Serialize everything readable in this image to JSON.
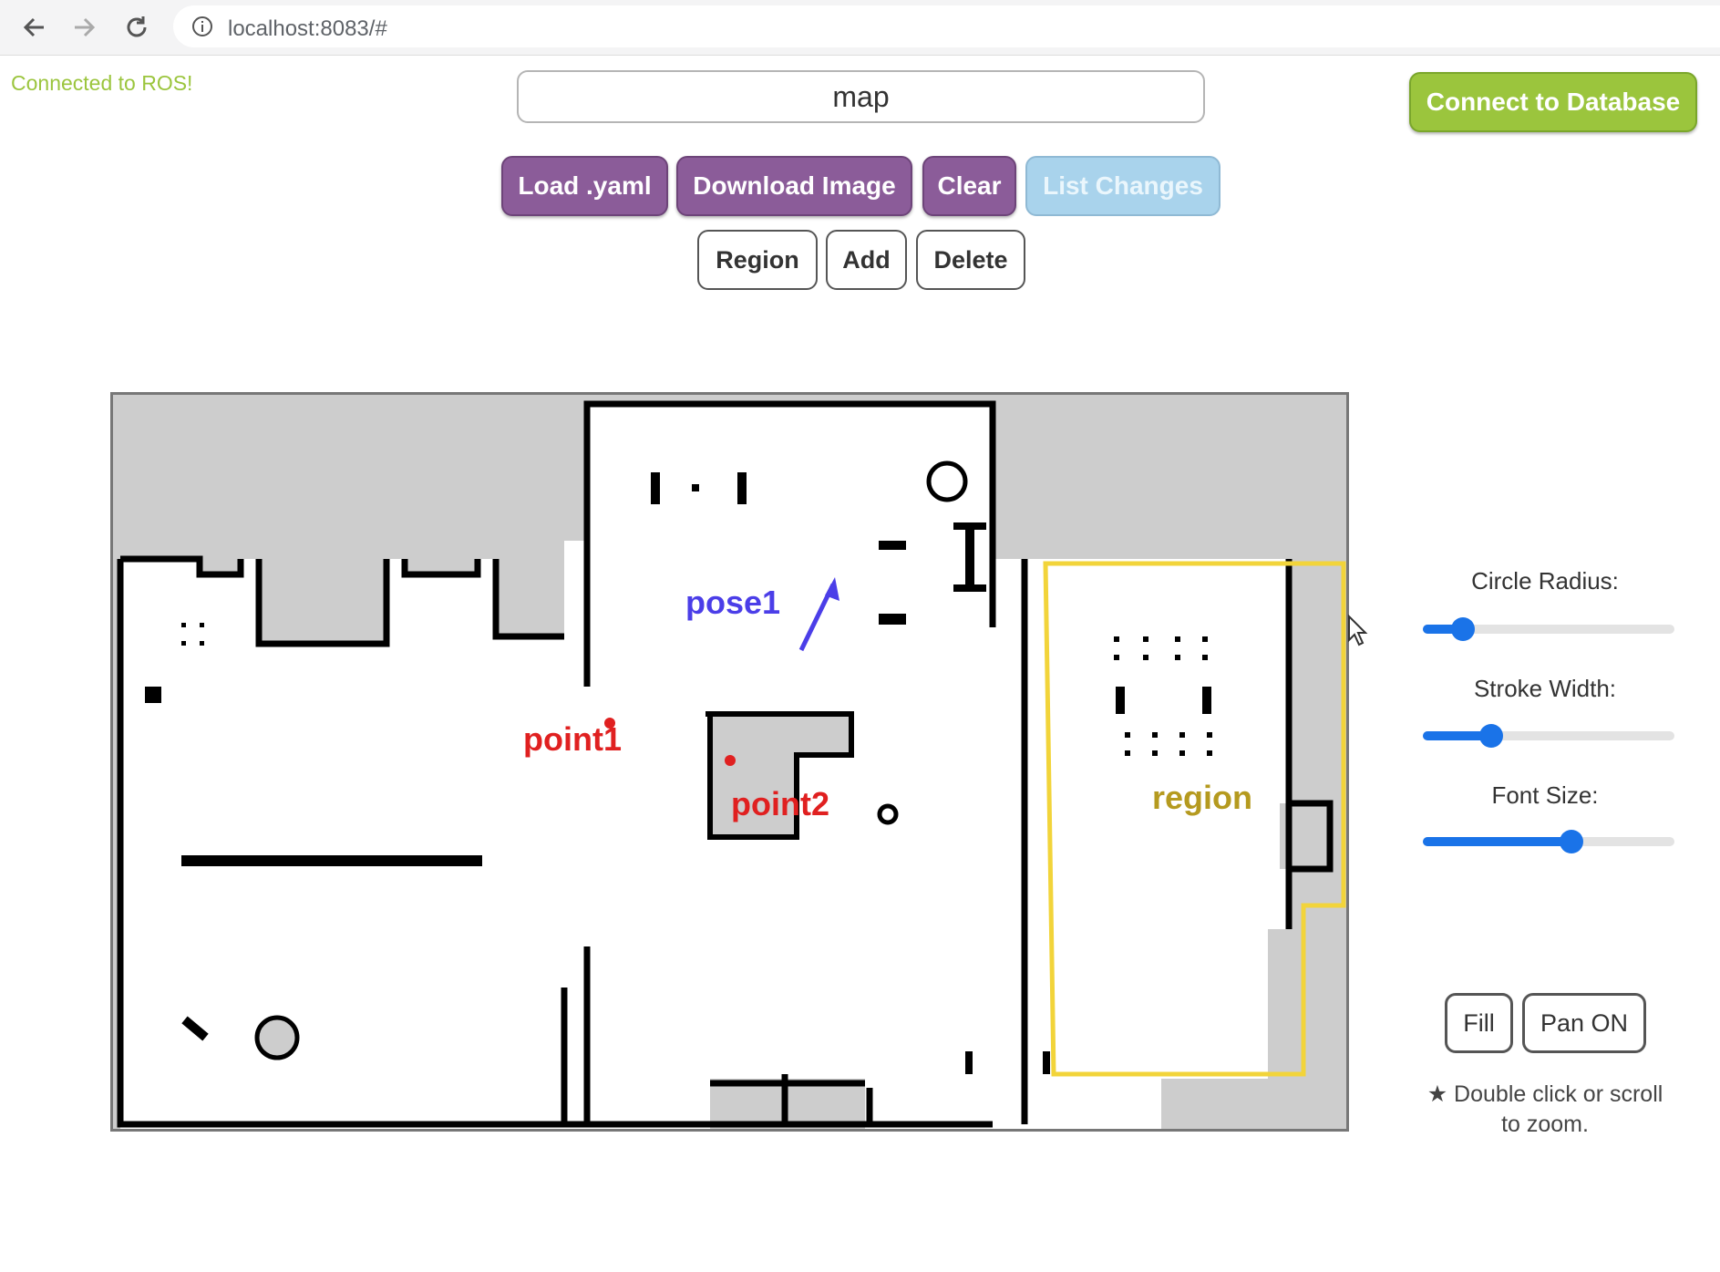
{
  "browser": {
    "url": "localhost:8083/#"
  },
  "status": {
    "ros": "Connected to ROS!"
  },
  "map_name_input": {
    "value": "map"
  },
  "toolbar": {
    "load_yaml": "Load .yaml",
    "download_image": "Download Image",
    "clear": "Clear",
    "list_changes": "List Changes",
    "connect_db": "Connect to Database"
  },
  "tools": {
    "region": "Region",
    "add": "Add",
    "delete": "Delete"
  },
  "map": {
    "labels": {
      "pose1": "pose1",
      "point1": "point1",
      "point2": "point2",
      "region": "region"
    },
    "colors": {
      "pose": "#4b3ee8",
      "point": "#e02020",
      "region_outline": "#f2d43a",
      "region_label": "#b59a1f"
    }
  },
  "controls": {
    "circle_radius": {
      "label": "Circle Radius:",
      "value": 0.16
    },
    "stroke_width": {
      "label": "Stroke Width:",
      "value": 0.27
    },
    "font_size": {
      "label": "Font Size:",
      "value": 0.59
    },
    "fill": "Fill",
    "pan": "Pan ON",
    "hint": "★ Double click or scroll to zoom."
  }
}
